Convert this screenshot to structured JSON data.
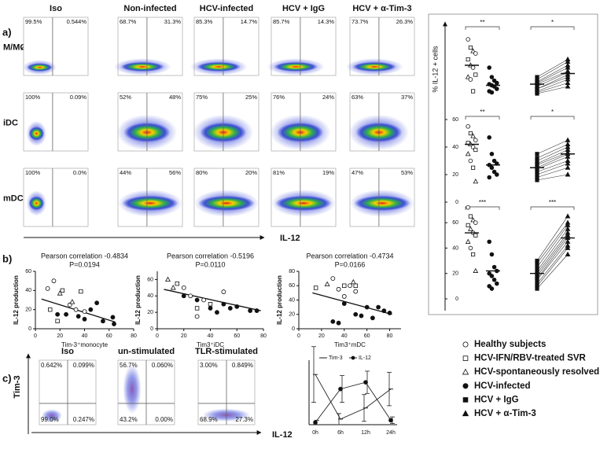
{
  "panel_a": {
    "label": "a)",
    "column_headers": [
      "Iso",
      "Non-infected",
      "HCV-infected",
      "HCV + IgG",
      "HCV + α-Tim-3"
    ],
    "row_labels": [
      "M/MØ",
      "iDC",
      "mDC"
    ],
    "quadrants": [
      [
        [
          "99.5%",
          "0.544%"
        ],
        [
          "68.7%",
          "31.3%"
        ],
        [
          "85.3%",
          "14.7%"
        ],
        [
          "85.7%",
          "14.3%"
        ],
        [
          "73.7%",
          "26.3%"
        ]
      ],
      [
        [
          "100%",
          "0.09%"
        ],
        [
          "52%",
          "48%"
        ],
        [
          "75%",
          "25%"
        ],
        [
          "76%",
          "24%"
        ],
        [
          "63%",
          "37%"
        ]
      ],
      [
        [
          "100%",
          "0.0%"
        ],
        [
          "44%",
          "56%"
        ],
        [
          "80%",
          "20%"
        ],
        [
          "81%",
          "19%"
        ],
        [
          "47%",
          "53%"
        ]
      ]
    ],
    "axis_label": "IL-12"
  },
  "panel_b": {
    "label": "b)",
    "plots": [
      {
        "type": "scatter",
        "title": "Pearson correlation -0.4834",
        "p_value": "P=0.0194",
        "x_label": "Tim-3⁺monocyte",
        "y_label": "IL-12 production",
        "xlim": [
          0,
          80
        ],
        "ylim": [
          0,
          60
        ],
        "xticks": [
          0,
          20,
          40,
          60,
          80
        ],
        "yticks": [
          0,
          20,
          40,
          60
        ],
        "groups": [
          {
            "marker": "open-circle",
            "x": [
              10,
              15,
              28,
              33,
              40
            ],
            "y": [
              42,
              50,
              25,
              20,
              18
            ]
          },
          {
            "marker": "open-square",
            "x": [
              12,
              18,
              22,
              37
            ],
            "y": [
              20,
              8,
              40,
              39
            ]
          },
          {
            "marker": "open-triangle",
            "x": [
              20,
              30
            ],
            "y": [
              37,
              28
            ]
          },
          {
            "marker": "filled-circle",
            "x": [
              18,
              25,
              35,
              40,
              45,
              50,
              55,
              63,
              64
            ],
            "y": [
              15,
              15,
              13,
              10,
              20,
              27,
              8,
              12,
              5
            ]
          }
        ],
        "trend": {
          "x": [
            5,
            65
          ],
          "y": [
            31,
            7
          ]
        }
      },
      {
        "type": "scatter",
        "title": "Pearson correlation -0.5196",
        "p_value": "P=0.0110",
        "x_label": "Tim3⁺iDC",
        "y_label": "IL-12 production",
        "xlim": [
          0,
          80
        ],
        "ylim": [
          0,
          70
        ],
        "xticks": [
          0,
          20,
          40,
          60,
          80
        ],
        "yticks": [
          0,
          20,
          40,
          60
        ],
        "groups": [
          {
            "marker": "open-circle",
            "x": [
              20,
              25,
              30,
              35,
              50
            ],
            "y": [
              50,
              40,
              15,
              35,
              45
            ]
          },
          {
            "marker": "open-square",
            "x": [
              15,
              30,
              40
            ],
            "y": [
              55,
              25,
              30
            ]
          },
          {
            "marker": "open-triangle",
            "x": [
              8,
              12
            ],
            "y": [
              60,
              50
            ]
          },
          {
            "marker": "filled-circle",
            "x": [
              20,
              30,
              40,
              45,
              50,
              55,
              60,
              70,
              75
            ],
            "y": [
              40,
              35,
              25,
              20,
              30,
              25,
              27,
              22,
              22
            ]
          }
        ],
        "trend": {
          "x": [
            5,
            78
          ],
          "y": [
            48,
            22
          ]
        }
      },
      {
        "type": "scatter",
        "title": "Pearson correlation -0.4734",
        "p_value": "P=0.0166",
        "x_label": "Tim3⁺mDC",
        "y_label": "IL-12 production",
        "xlim": [
          0,
          90
        ],
        "ylim": [
          0,
          80
        ],
        "xticks": [
          0,
          20,
          40,
          60,
          80
        ],
        "yticks": [
          0,
          20,
          40,
          60,
          80
        ],
        "groups": [
          {
            "marker": "open-circle",
            "x": [
              30,
              35,
              40,
              45,
              50
            ],
            "y": [
              70,
              55,
              45,
              60,
              52
            ]
          },
          {
            "marker": "open-square",
            "x": [
              15,
              40,
              50
            ],
            "y": [
              57,
              60,
              60
            ]
          },
          {
            "marker": "open-triangle",
            "x": [
              25,
              48
            ],
            "y": [
              62,
              65
            ]
          },
          {
            "marker": "filled-circle",
            "x": [
              30,
              35,
              40,
              50,
              55,
              60,
              65,
              70,
              75,
              80
            ],
            "y": [
              10,
              8,
              35,
              20,
              18,
              30,
              15,
              30,
              25,
              22
            ]
          }
        ],
        "trend": {
          "x": [
            12,
            82
          ],
          "y": [
            50,
            20
          ]
        }
      }
    ]
  },
  "panel_c": {
    "label": "c)",
    "column_headers": [
      "Iso",
      "un-stimulated",
      "TLR-stimulated"
    ],
    "y_axis_label": "Tim-3",
    "x_axis_label": "IL-12",
    "quadrants": [
      [
        "0.642%",
        "0.099%",
        "99.0%",
        "0.247%"
      ],
      [
        "56.7%",
        "0.060%",
        "43.2%",
        "0.00%"
      ],
      [
        "3.00%",
        "0.849%",
        "68.9%",
        "27.3%"
      ]
    ],
    "time_course": {
      "type": "line",
      "categories": [
        "0h",
        "6h",
        "12h",
        "24h"
      ],
      "ylim": [
        0,
        55
      ],
      "series": [
        {
          "name": "Tim-3",
          "color": "#222222",
          "marker": "dash",
          "values": [
            45,
            5,
            15,
            32
          ],
          "errors": [
            25,
            5,
            12,
            15
          ]
        },
        {
          "name": "IL-12",
          "color": "#222222",
          "marker": "filled-circle",
          "values": [
            2,
            32,
            38,
            4
          ],
          "errors": [
            2,
            12,
            10,
            3
          ]
        }
      ]
    }
  },
  "right_panel": {
    "y_label": "% IL-12 + cells",
    "plots": [
      {
        "ylim": [
          0,
          60
        ],
        "significance": [
          "**",
          "*"
        ],
        "groups": [
          {
            "marker": "open-mixed",
            "values": [
              52,
              45,
              42,
              40,
              35,
              30,
              28,
              22,
              20,
              18,
              8
            ],
            "median": 30
          },
          {
            "marker": "filled-circle",
            "values": [
              28,
              20,
              17,
              15,
              14,
              13,
              12,
              10,
              8,
              7
            ],
            "median": 13
          },
          {
            "marker": "filled-square",
            "values": [
              20,
              18,
              16,
              15,
              14,
              12,
              10,
              10,
              8,
              7,
              6
            ],
            "median": 14
          },
          {
            "marker": "filled-triangle",
            "values": [
              35,
              33,
              30,
              28,
              25,
              24,
              22,
              20,
              18,
              15,
              12
            ],
            "median": 23
          }
        ]
      },
      {
        "ylim": [
          0,
          60
        ],
        "yticks": [
          0,
          20,
          40,
          60
        ],
        "significance": [
          "**",
          "*"
        ],
        "groups": [
          {
            "marker": "open-mixed",
            "values": [
              55,
              50,
              48,
              45,
              43,
              42,
              40,
              38,
              35,
              30,
              25,
              15
            ],
            "median": 42
          },
          {
            "marker": "filled-circle",
            "values": [
              47,
              35,
              30,
              28,
              27,
              25,
              22,
              20,
              18
            ],
            "median": 27
          },
          {
            "marker": "filled-square",
            "values": [
              35,
              32,
              30,
              28,
              27,
              25,
              24,
              22,
              20,
              18,
              16
            ],
            "median": 25
          },
          {
            "marker": "filled-triangle",
            "values": [
              45,
              42,
              40,
              38,
              36,
              35,
              33,
              30,
              28,
              25,
              20
            ],
            "median": 35
          }
        ]
      },
      {
        "ylim": [
          0,
          70
        ],
        "yticks": [
          0,
          20,
          40,
          60
        ],
        "significance": [
          "***",
          "***"
        ],
        "groups": [
          {
            "marker": "open-mixed",
            "values": [
              72,
              65,
              62,
              60,
              58,
              55,
              52,
              50,
              45,
              40,
              35,
              22
            ],
            "median": 52
          },
          {
            "marker": "filled-circle",
            "values": [
              45,
              35,
              25,
              22,
              20,
              18,
              15,
              12,
              10,
              8
            ],
            "median": 22
          },
          {
            "marker": "filled-square",
            "values": [
              30,
              28,
              25,
              22,
              20,
              18,
              16,
              15,
              12,
              10,
              8
            ],
            "median": 20
          },
          {
            "marker": "filled-triangle",
            "values": [
              65,
              60,
              58,
              55,
              52,
              50,
              48,
              45,
              42,
              40,
              35
            ],
            "median": 48
          }
        ]
      }
    ]
  },
  "legend": [
    {
      "label": "Healthy subjects",
      "marker": "open-circle"
    },
    {
      "label": "HCV-IFN/RBV-treated SVR",
      "marker": "open-square"
    },
    {
      "label": "HCV-spontaneously resolved",
      "marker": "open-triangle"
    },
    {
      "label": "HCV-infected",
      "marker": "filled-circle"
    },
    {
      "label": "HCV + IgG",
      "marker": "filled-square"
    },
    {
      "label": "HCV + α-Tim-3",
      "marker": "filled-triangle"
    }
  ]
}
